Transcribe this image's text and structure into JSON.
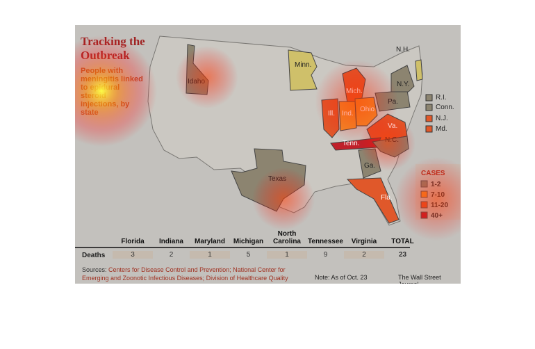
{
  "header": {
    "title_line1": "Tracking the",
    "title_line2": "Outbreak",
    "subtitle": "People with meningitis linked to epidural steroid injections, by state"
  },
  "map": {
    "labels": [
      "Idaho",
      "Minn.",
      "Mich.",
      "Ill.",
      "Ind.",
      "Ohio",
      "Pa.",
      "N.Y.",
      "N.H.",
      "Va.",
      "Tenn.",
      "N.C.",
      "Ga.",
      "Texas",
      "Fla."
    ],
    "inset_labels": [
      "R.I.",
      "Conn.",
      "N.J.",
      "Md."
    ]
  },
  "legend": {
    "title": "CASES",
    "items": [
      {
        "label": "1-2",
        "color": "#8c8470"
      },
      {
        "label": "7-10",
        "color": "#f0902a"
      },
      {
        "label": "11-20",
        "color": "#e0582a"
      },
      {
        "label": "40+",
        "color": "#c0202a"
      }
    ]
  },
  "table": {
    "columns": [
      "Florida",
      "Indiana",
      "Maryland",
      "Michigan",
      "North Carolina",
      "Tennessee",
      "Virginia",
      "TOTAL"
    ],
    "row_label": "Deaths",
    "values": [
      "3",
      "2",
      "1",
      "5",
      "1",
      "9",
      "2",
      "23"
    ]
  },
  "footer": {
    "sources_label": "Sources:",
    "sources": "Centers for Disease Control and Prevention; National Center for Emerging and Zoonotic Infectious Diseases; Division of Healthcare Quality Promotion",
    "note": "Note: As of Oct. 23",
    "credit": "The Wall Street Journal"
  }
}
